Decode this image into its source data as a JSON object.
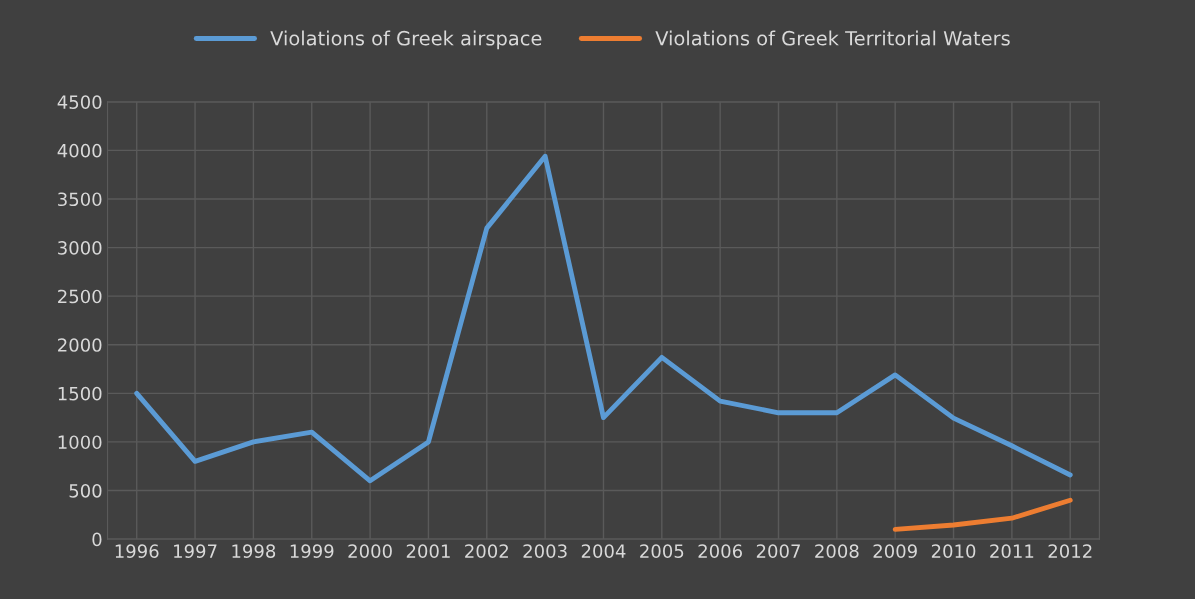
{
  "chart_data": {
    "type": "line",
    "categories": [
      "1996",
      "1997",
      "1998",
      "1999",
      "2000",
      "2001",
      "2002",
      "2003",
      "2004",
      "2005",
      "2006",
      "2007",
      "2008",
      "2009",
      "2010",
      "2011",
      "2012"
    ],
    "series": [
      {
        "name": "Violations of Greek airspace",
        "color": "#5b9bd5",
        "values": [
          1500,
          800,
          1000,
          1100,
          600,
          1000,
          3200,
          3940,
          1250,
          1870,
          1420,
          1300,
          1300,
          1690,
          1245,
          960,
          660
        ]
      },
      {
        "name": "Violations of Greek Territorial Waters",
        "color": "#ed7d31",
        "values": [
          null,
          null,
          null,
          null,
          null,
          null,
          null,
          null,
          null,
          null,
          null,
          null,
          null,
          100,
          145,
          215,
          400
        ]
      }
    ],
    "ylim": [
      0,
      4500
    ],
    "yticks": [
      0,
      500,
      1000,
      1500,
      2000,
      2500,
      3000,
      3500,
      4000,
      4500
    ],
    "grid": true,
    "legend": "top",
    "marker": "none",
    "line_style": "solid"
  }
}
